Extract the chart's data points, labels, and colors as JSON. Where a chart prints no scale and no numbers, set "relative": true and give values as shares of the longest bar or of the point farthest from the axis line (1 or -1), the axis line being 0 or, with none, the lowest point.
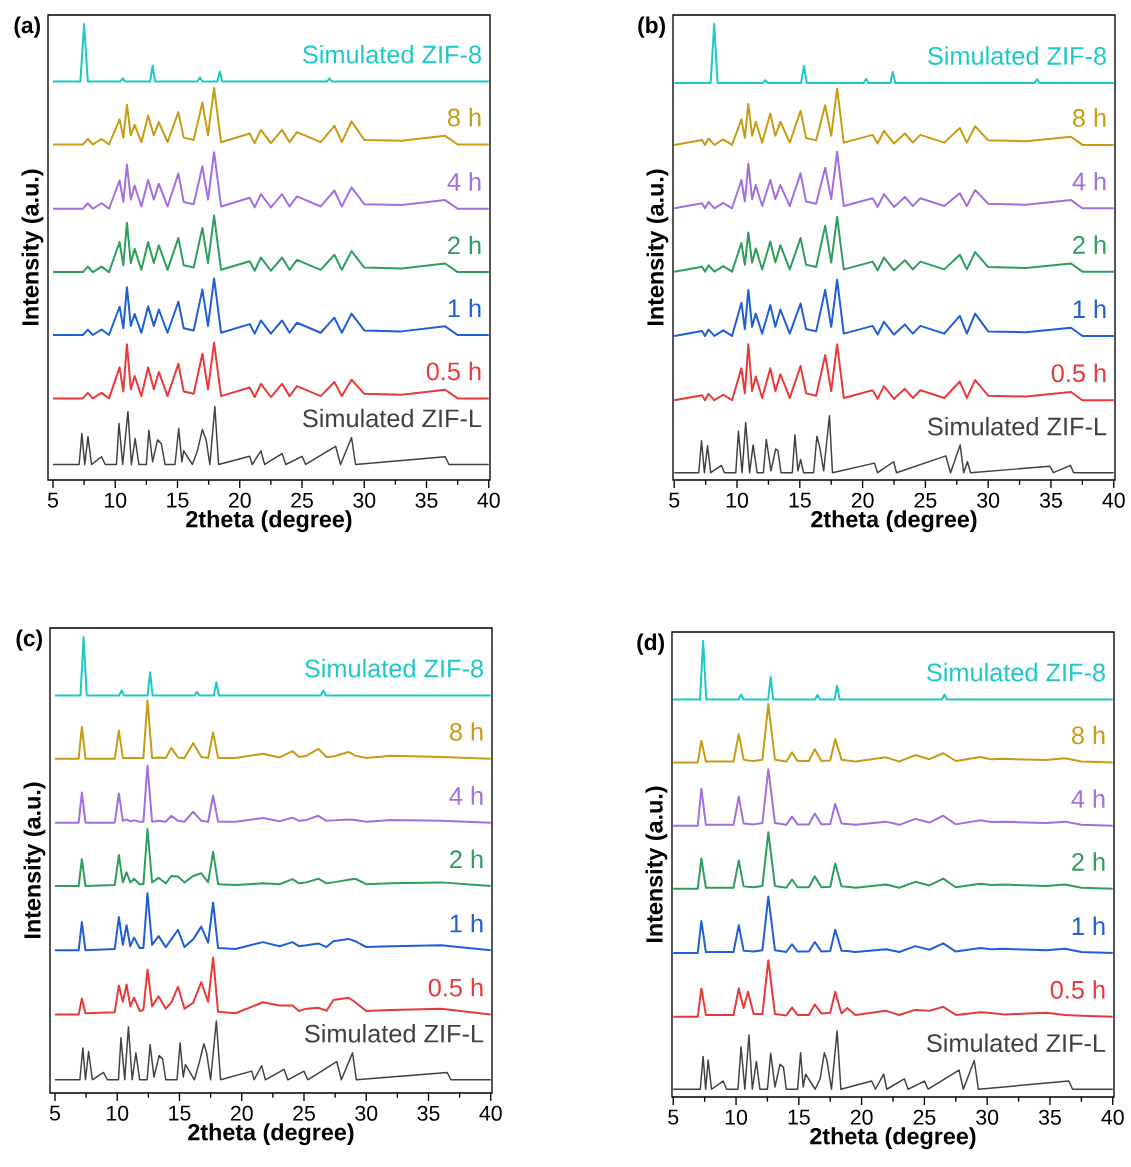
{
  "chart_data": [
    {
      "type": "line",
      "relative": true,
      "xlabel": "2theta (degree)",
      "ylabel": "Intensity (a.u.)",
      "annotations": [
        "(a)"
      ],
      "xlim": [
        4.6,
        40.1
      ],
      "xticks": [
        5,
        10,
        15,
        20,
        25,
        30,
        35,
        40
      ],
      "x": [
        5,
        7.4,
        7.8,
        8.2,
        8.9,
        9.5,
        10.35,
        10.65,
        10.94,
        11.25,
        11.56,
        12.1,
        12.64,
        13.1,
        13.5,
        14.2,
        15.07,
        15.5,
        16.3,
        17.0,
        17.45,
        17.94,
        18.5,
        20.8,
        21.2,
        21.7,
        22.5,
        23.4,
        24.0,
        24.6,
        26.5,
        27.6,
        28.2,
        28.98,
        30.0,
        33.0,
        36.5,
        37.5,
        40
      ],
      "series": [
        {
          "name": "Simulated ZIF-8",
          "color": "#1ec8c8",
          "x": [
            5,
            7.2,
            7.5,
            7.8,
            10.4,
            10.6,
            10.8,
            12.8,
            13.0,
            13.2,
            16.6,
            16.8,
            17.0,
            18.2,
            18.4,
            18.6,
            27.0,
            27.2,
            27.4,
            40
          ],
          "values": [
            0.874,
            0.874,
            1.0,
            0.874,
            0.874,
            0.881,
            0.874,
            0.874,
            0.909,
            0.874,
            0.874,
            0.883,
            0.874,
            0.874,
            0.896,
            0.874,
            0.874,
            0.881,
            0.874,
            0.874
          ]
        },
        {
          "name": "8 h",
          "color": "#c89b14",
          "values": [
            0.736,
            0.736,
            0.748,
            0.736,
            0.748,
            0.736,
            0.791,
            0.751,
            0.823,
            0.756,
            0.779,
            0.741,
            0.799,
            0.756,
            0.785,
            0.741,
            0.807,
            0.751,
            0.746,
            0.828,
            0.756,
            0.86,
            0.741,
            0.76,
            0.739,
            0.768,
            0.739,
            0.768,
            0.741,
            0.763,
            0.741,
            0.777,
            0.741,
            0.787,
            0.746,
            0.744,
            0.755,
            0.736,
            0.736
          ]
        },
        {
          "name": "4 h",
          "color": "#a36ee0",
          "values": [
            0.595,
            0.595,
            0.607,
            0.595,
            0.607,
            0.595,
            0.657,
            0.61,
            0.692,
            0.615,
            0.646,
            0.6,
            0.658,
            0.615,
            0.65,
            0.6,
            0.672,
            0.61,
            0.605,
            0.688,
            0.615,
            0.719,
            0.6,
            0.619,
            0.598,
            0.627,
            0.598,
            0.627,
            0.6,
            0.622,
            0.6,
            0.635,
            0.6,
            0.642,
            0.605,
            0.603,
            0.614,
            0.595,
            0.595
          ]
        },
        {
          "name": "2 h",
          "color": "#2e9e5b",
          "values": [
            0.456,
            0.456,
            0.468,
            0.456,
            0.468,
            0.456,
            0.522,
            0.471,
            0.564,
            0.476,
            0.507,
            0.461,
            0.522,
            0.476,
            0.515,
            0.461,
            0.531,
            0.471,
            0.466,
            0.553,
            0.476,
            0.58,
            0.461,
            0.48,
            0.459,
            0.488,
            0.459,
            0.488,
            0.461,
            0.483,
            0.461,
            0.494,
            0.461,
            0.502,
            0.466,
            0.464,
            0.475,
            0.456,
            0.456
          ]
        },
        {
          "name": "1 h",
          "color": "#1f5fd6",
          "values": [
            0.318,
            0.318,
            0.33,
            0.318,
            0.33,
            0.318,
            0.38,
            0.333,
            0.423,
            0.338,
            0.364,
            0.323,
            0.381,
            0.338,
            0.374,
            0.323,
            0.391,
            0.333,
            0.328,
            0.418,
            0.338,
            0.442,
            0.323,
            0.342,
            0.321,
            0.35,
            0.321,
            0.35,
            0.323,
            0.345,
            0.323,
            0.356,
            0.323,
            0.365,
            0.328,
            0.326,
            0.337,
            0.318,
            0.318
          ]
        },
        {
          "name": "0.5 h",
          "color": "#e83a3a",
          "values": [
            0.179,
            0.179,
            0.191,
            0.179,
            0.191,
            0.179,
            0.247,
            0.194,
            0.298,
            0.199,
            0.228,
            0.184,
            0.247,
            0.199,
            0.237,
            0.184,
            0.255,
            0.194,
            0.189,
            0.277,
            0.199,
            0.301,
            0.184,
            0.203,
            0.182,
            0.211,
            0.182,
            0.211,
            0.184,
            0.206,
            0.184,
            0.215,
            0.184,
            0.22,
            0.189,
            0.187,
            0.198,
            0.179,
            0.179
          ]
        },
        {
          "name": "Simulated ZIF-L",
          "color": "#404040",
          "x": [
            5,
            7.1,
            7.32,
            7.55,
            7.81,
            8.1,
            8.9,
            9.2,
            10.1,
            10.3,
            10.6,
            11.02,
            11.3,
            11.6,
            11.9,
            12.5,
            12.7,
            13.0,
            13.4,
            13.7,
            14.0,
            14.8,
            15.1,
            15.35,
            15.5,
            16.2,
            16.6,
            17.0,
            17.3,
            17.6,
            18.0,
            18.3,
            20.8,
            21.0,
            21.7,
            22.0,
            23.4,
            23.7,
            25.0,
            25.3,
            27.7,
            28.1,
            28.98,
            29.3,
            36.5,
            36.8,
            40
          ],
          "values": [
            0.034,
            0.034,
            0.102,
            0.034,
            0.095,
            0.034,
            0.051,
            0.034,
            0.034,
            0.124,
            0.034,
            0.15,
            0.034,
            0.091,
            0.034,
            0.034,
            0.109,
            0.04,
            0.088,
            0.08,
            0.034,
            0.034,
            0.113,
            0.04,
            0.064,
            0.034,
            0.064,
            0.111,
            0.088,
            0.034,
            0.161,
            0.034,
            0.052,
            0.034,
            0.064,
            0.034,
            0.058,
            0.034,
            0.052,
            0.034,
            0.074,
            0.034,
            0.093,
            0.034,
            0.051,
            0.034,
            0.034
          ]
        }
      ]
    },
    {
      "type": "line",
      "relative": true,
      "xlabel": "2theta (degree)",
      "ylabel": "Intensity (a.u.)",
      "annotations": [
        "(b)"
      ],
      "xlim": [
        4.9,
        40.1
      ],
      "xticks": [
        5,
        10,
        15,
        20,
        25,
        30,
        35,
        40
      ],
      "x": [
        5,
        7.22,
        7.45,
        7.73,
        8.2,
        8.9,
        9.6,
        10.35,
        10.62,
        10.9,
        11.2,
        11.49,
        12.0,
        12.65,
        13.05,
        13.45,
        14.2,
        15.06,
        15.5,
        16.3,
        17.02,
        17.5,
        17.97,
        18.5,
        20.8,
        21.2,
        21.7,
        22.5,
        23.37,
        24.0,
        24.6,
        26.5,
        27.74,
        28.3,
        28.96,
        30.0,
        33.0,
        36.6,
        37.5,
        40
      ],
      "series": [
        {
          "name": "Simulated ZIF-8",
          "color": "#1ec8c8",
          "x": [
            5,
            7.9,
            8.18,
            8.45,
            12.05,
            12.25,
            12.45,
            15.1,
            15.33,
            15.55,
            20.08,
            20.28,
            20.48,
            22.2,
            22.4,
            22.6,
            33.7,
            33.9,
            34.1,
            40
          ],
          "values": [
            0.871,
            0.871,
            1.0,
            0.871,
            0.871,
            0.877,
            0.871,
            0.871,
            0.908,
            0.871,
            0.871,
            0.88,
            0.871,
            0.871,
            0.895,
            0.871,
            0.871,
            0.879,
            0.871,
            0.871
          ]
        },
        {
          "name": "8 h",
          "color": "#c89b14",
          "values": [
            0.735,
            0.746,
            0.735,
            0.749,
            0.735,
            0.747,
            0.735,
            0.791,
            0.75,
            0.825,
            0.755,
            0.786,
            0.74,
            0.804,
            0.755,
            0.786,
            0.74,
            0.81,
            0.75,
            0.745,
            0.822,
            0.755,
            0.859,
            0.74,
            0.757,
            0.738,
            0.766,
            0.738,
            0.76,
            0.74,
            0.757,
            0.74,
            0.772,
            0.74,
            0.776,
            0.745,
            0.743,
            0.753,
            0.735,
            0.735
          ]
        },
        {
          "name": "4 h",
          "color": "#a36ee0",
          "values": [
            0.596,
            0.607,
            0.596,
            0.61,
            0.596,
            0.608,
            0.596,
            0.658,
            0.611,
            0.694,
            0.616,
            0.647,
            0.601,
            0.658,
            0.616,
            0.647,
            0.601,
            0.673,
            0.611,
            0.606,
            0.685,
            0.616,
            0.72,
            0.601,
            0.618,
            0.599,
            0.627,
            0.599,
            0.621,
            0.601,
            0.618,
            0.601,
            0.629,
            0.601,
            0.636,
            0.606,
            0.604,
            0.614,
            0.596,
            0.596
          ]
        },
        {
          "name": "2 h",
          "color": "#2e9e5b",
          "values": [
            0.457,
            0.468,
            0.457,
            0.471,
            0.457,
            0.469,
            0.457,
            0.52,
            0.472,
            0.543,
            0.477,
            0.508,
            0.462,
            0.523,
            0.477,
            0.515,
            0.462,
            0.531,
            0.472,
            0.467,
            0.558,
            0.477,
            0.577,
            0.462,
            0.479,
            0.46,
            0.488,
            0.46,
            0.482,
            0.462,
            0.479,
            0.462,
            0.494,
            0.462,
            0.5,
            0.467,
            0.465,
            0.475,
            0.457,
            0.457
          ]
        },
        {
          "name": "1 h",
          "color": "#1f5fd6",
          "values": [
            0.316,
            0.327,
            0.316,
            0.33,
            0.316,
            0.328,
            0.316,
            0.389,
            0.331,
            0.417,
            0.336,
            0.365,
            0.321,
            0.384,
            0.336,
            0.374,
            0.321,
            0.387,
            0.331,
            0.326,
            0.417,
            0.336,
            0.439,
            0.321,
            0.338,
            0.319,
            0.347,
            0.319,
            0.341,
            0.321,
            0.338,
            0.321,
            0.36,
            0.321,
            0.365,
            0.326,
            0.324,
            0.334,
            0.316,
            0.316
          ]
        },
        {
          "name": "0.5 h",
          "color": "#e83a3a",
          "values": [
            0.175,
            0.186,
            0.175,
            0.189,
            0.175,
            0.187,
            0.175,
            0.245,
            0.19,
            0.298,
            0.195,
            0.227,
            0.18,
            0.245,
            0.195,
            0.232,
            0.18,
            0.25,
            0.19,
            0.185,
            0.274,
            0.195,
            0.298,
            0.18,
            0.197,
            0.178,
            0.206,
            0.178,
            0.2,
            0.18,
            0.197,
            0.18,
            0.216,
            0.18,
            0.219,
            0.185,
            0.183,
            0.193,
            0.175,
            0.175
          ]
        },
        {
          "name": "Simulated ZIF-L",
          "color": "#404040",
          "x": [
            5,
            6.95,
            7.17,
            7.4,
            7.65,
            7.9,
            8.76,
            9.0,
            9.9,
            10.11,
            10.4,
            10.69,
            11.0,
            11.28,
            11.6,
            12.1,
            12.33,
            12.7,
            13.08,
            13.26,
            13.5,
            14.4,
            14.61,
            14.85,
            15.06,
            15.3,
            16.1,
            16.36,
            16.6,
            16.9,
            17.36,
            17.6,
            20.94,
            21.2,
            22.47,
            22.7,
            26.63,
            27.0,
            27.77,
            28.05,
            28.35,
            28.6,
            34.92,
            35.2,
            36.56,
            36.8,
            40
          ],
          "values": [
            0.016,
            0.016,
            0.086,
            0.016,
            0.075,
            0.016,
            0.032,
            0.016,
            0.016,
            0.107,
            0.016,
            0.126,
            0.016,
            0.077,
            0.016,
            0.016,
            0.089,
            0.02,
            0.068,
            0.064,
            0.016,
            0.016,
            0.099,
            0.02,
            0.045,
            0.016,
            0.016,
            0.096,
            0.07,
            0.02,
            0.141,
            0.016,
            0.037,
            0.016,
            0.04,
            0.016,
            0.053,
            0.016,
            0.077,
            0.016,
            0.04,
            0.016,
            0.03,
            0.016,
            0.032,
            0.016,
            0.016
          ]
        }
      ]
    },
    {
      "type": "line",
      "relative": true,
      "xlabel": "2theta (degree)",
      "ylabel": "Intensity (a.u.)",
      "annotations": [
        "(c)"
      ],
      "xlim": [
        4.6,
        40.1
      ],
      "xticks": [
        5,
        10,
        15,
        20,
        25,
        30,
        35,
        40
      ],
      "x": [
        5,
        6.9,
        7.16,
        7.45,
        9.8,
        10.13,
        10.45,
        10.75,
        11.05,
        11.35,
        11.8,
        12.1,
        12.43,
        12.8,
        13.32,
        13.9,
        14.34,
        14.88,
        15.4,
        16.1,
        16.75,
        17.3,
        17.7,
        18.1,
        19.5,
        21.7,
        23.04,
        24.07,
        24.6,
        25.2,
        26.15,
        26.8,
        27.36,
        28.58,
        29.12,
        30.0,
        32.0,
        36.0,
        40
      ],
      "series": [
        {
          "name": "Simulated ZIF-8",
          "color": "#1ec8c8",
          "x": [
            5,
            7.05,
            7.3,
            7.55,
            10.15,
            10.35,
            10.55,
            12.44,
            12.64,
            12.84,
            16.2,
            16.4,
            16.6,
            17.76,
            17.96,
            18.16,
            26.35,
            26.55,
            26.75,
            40
          ],
          "values": [
            0.872,
            0.872,
            1.0,
            0.872,
            0.872,
            0.883,
            0.872,
            0.872,
            0.923,
            0.872,
            0.872,
            0.88,
            0.872,
            0.872,
            0.901,
            0.872,
            0.872,
            0.883,
            0.872,
            0.872
          ]
        },
        {
          "name": "8 h",
          "color": "#c89b14",
          "values": [
            0.733,
            0.733,
            0.803,
            0.733,
            0.733,
            0.795,
            0.735,
            0.735,
            0.735,
            0.735,
            0.735,
            0.735,
            0.861,
            0.735,
            0.736,
            0.735,
            0.757,
            0.736,
            0.735,
            0.768,
            0.737,
            0.735,
            0.791,
            0.735,
            0.735,
            0.744,
            0.736,
            0.75,
            0.737,
            0.74,
            0.755,
            0.737,
            0.738,
            0.748,
            0.74,
            0.735,
            0.74,
            0.737,
            0.733
          ]
        },
        {
          "name": "4 h",
          "color": "#a36ee0",
          "values": [
            0.593,
            0.593,
            0.659,
            0.593,
            0.593,
            0.657,
            0.597,
            0.6,
            0.596,
            0.598,
            0.595,
            0.595,
            0.718,
            0.595,
            0.597,
            0.595,
            0.608,
            0.597,
            0.595,
            0.617,
            0.597,
            0.595,
            0.652,
            0.595,
            0.595,
            0.603,
            0.596,
            0.604,
            0.597,
            0.599,
            0.608,
            0.597,
            0.598,
            0.6,
            0.599,
            0.595,
            0.599,
            0.597,
            0.593
          ]
        },
        {
          "name": "2 h",
          "color": "#2e9e5b",
          "values": [
            0.454,
            0.454,
            0.513,
            0.454,
            0.456,
            0.522,
            0.462,
            0.484,
            0.462,
            0.47,
            0.458,
            0.458,
            0.579,
            0.462,
            0.472,
            0.46,
            0.476,
            0.475,
            0.462,
            0.476,
            0.482,
            0.462,
            0.529,
            0.458,
            0.456,
            0.46,
            0.458,
            0.469,
            0.46,
            0.462,
            0.47,
            0.46,
            0.462,
            0.468,
            0.47,
            0.458,
            0.46,
            0.462,
            0.454
          ]
        },
        {
          "name": "1 h",
          "color": "#1f5fd6",
          "values": [
            0.313,
            0.313,
            0.375,
            0.313,
            0.316,
            0.386,
            0.325,
            0.368,
            0.322,
            0.341,
            0.318,
            0.318,
            0.438,
            0.325,
            0.344,
            0.32,
            0.337,
            0.358,
            0.32,
            0.337,
            0.365,
            0.33,
            0.418,
            0.318,
            0.316,
            0.331,
            0.322,
            0.331,
            0.322,
            0.324,
            0.328,
            0.32,
            0.333,
            0.338,
            0.333,
            0.32,
            0.322,
            0.324,
            0.313
          ]
        },
        {
          "name": "0.5 h",
          "color": "#e83a3a",
          "values": [
            0.172,
            0.172,
            0.207,
            0.175,
            0.177,
            0.236,
            0.2,
            0.238,
            0.19,
            0.209,
            0.18,
            0.182,
            0.271,
            0.19,
            0.212,
            0.185,
            0.198,
            0.233,
            0.185,
            0.198,
            0.243,
            0.2,
            0.297,
            0.178,
            0.175,
            0.199,
            0.192,
            0.192,
            0.18,
            0.185,
            0.187,
            0.18,
            0.204,
            0.209,
            0.199,
            0.18,
            0.182,
            0.185,
            0.172
          ]
        },
        {
          "name": "Simulated ZIF-L",
          "color": "#404040",
          "x": [
            5,
            7.0,
            7.24,
            7.45,
            7.7,
            8.0,
            8.9,
            9.2,
            10.1,
            10.3,
            10.6,
            10.9,
            11.2,
            11.5,
            11.8,
            12.4,
            12.64,
            12.95,
            13.37,
            13.64,
            13.9,
            14.8,
            15.05,
            15.3,
            15.48,
            16.2,
            16.56,
            16.96,
            17.18,
            17.5,
            17.96,
            18.3,
            20.8,
            21.0,
            21.6,
            21.9,
            23.4,
            23.7,
            25.0,
            25.3,
            27.63,
            28.0,
            28.9,
            29.2,
            36.5,
            36.8,
            40
          ],
          "values": [
            0.029,
            0.029,
            0.099,
            0.029,
            0.091,
            0.029,
            0.045,
            0.029,
            0.029,
            0.121,
            0.029,
            0.145,
            0.029,
            0.088,
            0.029,
            0.029,
            0.106,
            0.035,
            0.082,
            0.075,
            0.029,
            0.029,
            0.11,
            0.035,
            0.062,
            0.029,
            0.064,
            0.108,
            0.088,
            0.029,
            0.158,
            0.029,
            0.048,
            0.029,
            0.06,
            0.029,
            0.052,
            0.029,
            0.048,
            0.029,
            0.069,
            0.029,
            0.088,
            0.029,
            0.045,
            0.029,
            0.029
          ]
        }
      ]
    },
    {
      "type": "line",
      "relative": true,
      "xlabel": "2theta (degree)",
      "ylabel": "Intensity (a.u.)",
      "annotations": [
        "(d)"
      ],
      "xlim": [
        4.9,
        40.1
      ],
      "xticks": [
        5,
        10,
        15,
        20,
        25,
        30,
        35,
        40
      ],
      "x": [
        5,
        6.95,
        7.24,
        7.6,
        9.8,
        10.22,
        10.6,
        10.95,
        11.4,
        12.1,
        12.57,
        13.1,
        14.0,
        14.46,
        14.9,
        15.8,
        16.27,
        16.8,
        17.5,
        17.9,
        18.4,
        18.86,
        19.5,
        21.95,
        23.0,
        24.27,
        25.4,
        26.5,
        27.5,
        29.46,
        30.3,
        31.4,
        32.2,
        34.7,
        36.2,
        37.5,
        40
      ],
      "series": [
        {
          "name": "Simulated ZIF-8",
          "color": "#1ec8c8",
          "x": [
            5,
            7.13,
            7.38,
            7.63,
            10.2,
            10.4,
            10.6,
            12.56,
            12.76,
            12.96,
            16.29,
            16.49,
            16.69,
            17.85,
            18.05,
            18.25,
            26.4,
            26.6,
            26.8,
            40
          ],
          "values": [
            0.872,
            0.872,
            1.0,
            0.872,
            0.872,
            0.883,
            0.872,
            0.872,
            0.921,
            0.872,
            0.872,
            0.882,
            0.872,
            0.872,
            0.902,
            0.872,
            0.872,
            0.883,
            0.872,
            0.872
          ]
        },
        {
          "name": "8 h",
          "color": "#c89b14",
          "values": [
            0.734,
            0.734,
            0.781,
            0.736,
            0.736,
            0.796,
            0.74,
            0.738,
            0.737,
            0.74,
            0.862,
            0.74,
            0.736,
            0.756,
            0.737,
            0.737,
            0.763,
            0.737,
            0.738,
            0.785,
            0.74,
            0.738,
            0.736,
            0.745,
            0.736,
            0.75,
            0.741,
            0.754,
            0.737,
            0.746,
            0.741,
            0.742,
            0.741,
            0.739,
            0.743,
            0.736,
            0.734
          ]
        },
        {
          "name": "4 h",
          "color": "#a36ee0",
          "values": [
            0.595,
            0.595,
            0.676,
            0.597,
            0.597,
            0.659,
            0.6,
            0.599,
            0.598,
            0.601,
            0.719,
            0.601,
            0.597,
            0.615,
            0.598,
            0.598,
            0.622,
            0.598,
            0.599,
            0.643,
            0.6,
            0.599,
            0.597,
            0.604,
            0.597,
            0.61,
            0.602,
            0.617,
            0.598,
            0.607,
            0.603,
            0.604,
            0.603,
            0.601,
            0.604,
            0.597,
            0.595
          ]
        },
        {
          "name": "2 h",
          "color": "#2e9e5b",
          "values": [
            0.457,
            0.457,
            0.523,
            0.459,
            0.459,
            0.519,
            0.462,
            0.461,
            0.46,
            0.463,
            0.581,
            0.463,
            0.459,
            0.477,
            0.46,
            0.46,
            0.484,
            0.46,
            0.461,
            0.512,
            0.462,
            0.461,
            0.459,
            0.466,
            0.459,
            0.472,
            0.464,
            0.479,
            0.46,
            0.468,
            0.465,
            0.466,
            0.465,
            0.463,
            0.466,
            0.459,
            0.457
          ]
        },
        {
          "name": "1 h",
          "color": "#1f5fd6",
          "values": [
            0.316,
            0.316,
            0.386,
            0.318,
            0.318,
            0.377,
            0.321,
            0.32,
            0.319,
            0.322,
            0.44,
            0.322,
            0.318,
            0.335,
            0.319,
            0.319,
            0.34,
            0.319,
            0.32,
            0.367,
            0.321,
            0.32,
            0.318,
            0.324,
            0.318,
            0.331,
            0.323,
            0.337,
            0.319,
            0.327,
            0.324,
            0.325,
            0.324,
            0.322,
            0.325,
            0.318,
            0.316
          ]
        },
        {
          "name": "0.5 h",
          "color": "#e83a3a",
          "values": [
            0.176,
            0.176,
            0.238,
            0.18,
            0.18,
            0.238,
            0.195,
            0.231,
            0.182,
            0.182,
            0.3,
            0.182,
            0.179,
            0.196,
            0.18,
            0.18,
            0.203,
            0.183,
            0.185,
            0.231,
            0.183,
            0.195,
            0.18,
            0.189,
            0.18,
            0.191,
            0.189,
            0.198,
            0.18,
            0.186,
            0.184,
            0.181,
            0.182,
            0.185,
            0.18,
            0.178,
            0.176
          ]
        },
        {
          "name": "Simulated ZIF-L",
          "color": "#404040",
          "x": [
            5,
            7.15,
            7.38,
            7.58,
            7.78,
            8.05,
            8.97,
            9.25,
            10.15,
            10.4,
            10.7,
            11.03,
            11.3,
            11.62,
            11.9,
            12.5,
            12.76,
            13.1,
            13.51,
            13.78,
            14.0,
            14.9,
            15.14,
            15.35,
            15.54,
            16.3,
            16.7,
            17.03,
            17.24,
            17.6,
            18.05,
            18.35,
            20.8,
            21.1,
            21.76,
            22.0,
            23.4,
            23.7,
            25.0,
            25.3,
            27.76,
            28.1,
            28.97,
            29.3,
            36.5,
            36.8,
            40
          ],
          "values": [
            0.017,
            0.017,
            0.089,
            0.017,
            0.081,
            0.017,
            0.035,
            0.017,
            0.017,
            0.11,
            0.017,
            0.136,
            0.017,
            0.078,
            0.017,
            0.017,
            0.096,
            0.022,
            0.072,
            0.065,
            0.017,
            0.017,
            0.097,
            0.022,
            0.05,
            0.017,
            0.04,
            0.097,
            0.08,
            0.017,
            0.145,
            0.017,
            0.035,
            0.017,
            0.05,
            0.017,
            0.04,
            0.017,
            0.035,
            0.017,
            0.059,
            0.017,
            0.08,
            0.017,
            0.035,
            0.017,
            0.017
          ]
        }
      ]
    }
  ]
}
